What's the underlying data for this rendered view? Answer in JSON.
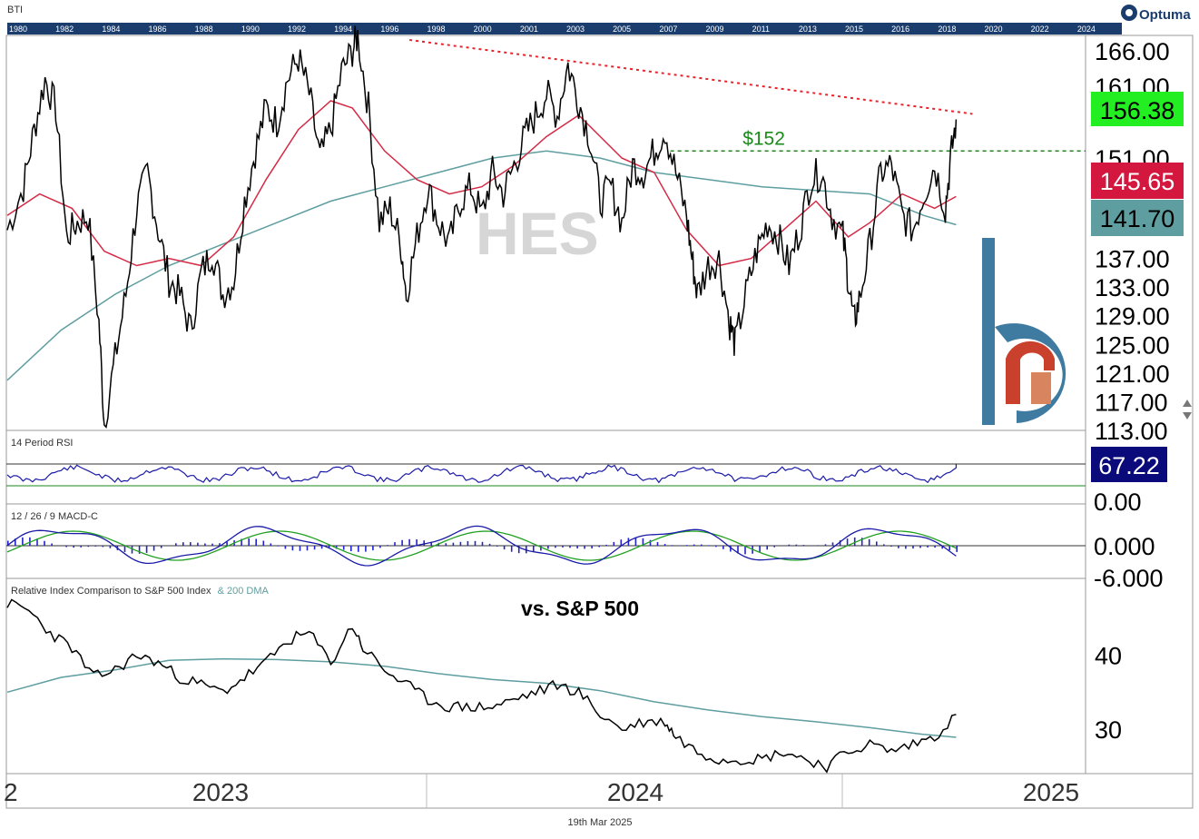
{
  "app": {
    "brand": "Optuma",
    "symbol_code": "BTI",
    "date": "19th Mar 2025"
  },
  "timeline_years": [
    "1980",
    "1982",
    "1984",
    "1986",
    "1988",
    "1990",
    "1992",
    "1994",
    "1996",
    "1998",
    "2000",
    "2001",
    "2003",
    "2005",
    "2007",
    "2009",
    "2011",
    "2013",
    "2015",
    "2016",
    "2018",
    "2020",
    "2022",
    "2024"
  ],
  "colors": {
    "price": "#000000",
    "ma_red": "#d42a45",
    "ma_teal": "#5f9ea0",
    "trend_red": "#e8242c",
    "support_green": "#1b8a1b",
    "rsi_line": "#1a1aa8",
    "macd_line": "#1a1aa8",
    "signal_line": "#22a022",
    "hist": "#2222cc",
    "tag_green": "#22ee22",
    "tag_red": "#d4173f",
    "tag_teal": "#5f9ea0",
    "tag_navy": "#0a0a7a",
    "timeline_bg": "#1a3d6e",
    "logo_blue": "#3f7aa0",
    "logo_red": "#c9402d",
    "logo_orange": "#d8845e"
  },
  "chart_data": [
    {
      "type": "line",
      "panel": "price",
      "watermark": "HES",
      "annotation": "$152",
      "yticks": [
        "166.00",
        "161.00",
        "151.00",
        "137.00",
        "133.00",
        "129.00",
        "125.00",
        "121.00",
        "117.00",
        "113.00"
      ],
      "ylim": [
        113,
        168
      ],
      "last_values": {
        "price": "156.38",
        "ma_red": "145.65",
        "ma_teal": "141.70"
      },
      "support_level": 152,
      "trendline": {
        "from": [
          0.373,
          167.5
        ],
        "to": [
          0.88,
          157.3
        ]
      },
      "price_points": [
        [
          0.0,
          141
        ],
        [
          0.015,
          147
        ],
        [
          0.025,
          155
        ],
        [
          0.035,
          162
        ],
        [
          0.045,
          158
        ],
        [
          0.055,
          140
        ],
        [
          0.065,
          142
        ],
        [
          0.075,
          143
        ],
        [
          0.085,
          128
        ],
        [
          0.09,
          114
        ],
        [
          0.1,
          123
        ],
        [
          0.11,
          132
        ],
        [
          0.12,
          144
        ],
        [
          0.13,
          149
        ],
        [
          0.14,
          141
        ],
        [
          0.15,
          134
        ],
        [
          0.16,
          132
        ],
        [
          0.17,
          127
        ],
        [
          0.18,
          135
        ],
        [
          0.19,
          138
        ],
        [
          0.2,
          132
        ],
        [
          0.21,
          134
        ],
        [
          0.22,
          145
        ],
        [
          0.23,
          152
        ],
        [
          0.24,
          158
        ],
        [
          0.25,
          156
        ],
        [
          0.26,
          162
        ],
        [
          0.27,
          165
        ],
        [
          0.28,
          160
        ],
        [
          0.29,
          151
        ],
        [
          0.3,
          155
        ],
        [
          0.31,
          163
        ],
        [
          0.32,
          166
        ],
        [
          0.325,
          168
        ],
        [
          0.335,
          158
        ],
        [
          0.345,
          142
        ],
        [
          0.355,
          144
        ],
        [
          0.365,
          139
        ],
        [
          0.37,
          132
        ],
        [
          0.38,
          140
        ],
        [
          0.39,
          147
        ],
        [
          0.4,
          142
        ],
        [
          0.41,
          139
        ],
        [
          0.42,
          145
        ],
        [
          0.43,
          147
        ],
        [
          0.44,
          143
        ],
        [
          0.45,
          149
        ],
        [
          0.46,
          146
        ],
        [
          0.47,
          150
        ],
        [
          0.48,
          154
        ],
        [
          0.49,
          157
        ],
        [
          0.5,
          160
        ],
        [
          0.51,
          157
        ],
        [
          0.52,
          164
        ],
        [
          0.53,
          159
        ],
        [
          0.54,
          154
        ],
        [
          0.55,
          145
        ],
        [
          0.56,
          147
        ],
        [
          0.57,
          142
        ],
        [
          0.58,
          150
        ],
        [
          0.59,
          149
        ],
        [
          0.6,
          152
        ],
        [
          0.61,
          155
        ],
        [
          0.62,
          149
        ],
        [
          0.63,
          143
        ],
        [
          0.635,
          137
        ],
        [
          0.64,
          132
        ],
        [
          0.65,
          136
        ],
        [
          0.66,
          137
        ],
        [
          0.67,
          128
        ],
        [
          0.675,
          125
        ],
        [
          0.685,
          132
        ],
        [
          0.695,
          138
        ],
        [
          0.705,
          142
        ],
        [
          0.715,
          140
        ],
        [
          0.725,
          136
        ],
        [
          0.735,
          141
        ],
        [
          0.745,
          148
        ],
        [
          0.755,
          149
        ],
        [
          0.765,
          143
        ],
        [
          0.775,
          140
        ],
        [
          0.78,
          134
        ],
        [
          0.785,
          128
        ],
        [
          0.79,
          131
        ],
        [
          0.8,
          139
        ],
        [
          0.81,
          149
        ],
        [
          0.82,
          150
        ],
        [
          0.83,
          143
        ],
        [
          0.84,
          141
        ],
        [
          0.85,
          146
        ],
        [
          0.86,
          150
        ],
        [
          0.87,
          144
        ],
        [
          0.875,
          151
        ],
        [
          0.88,
          156.4
        ]
      ],
      "ma_red_points": [
        [
          0.0,
          143
        ],
        [
          0.03,
          146
        ],
        [
          0.06,
          144
        ],
        [
          0.09,
          138
        ],
        [
          0.12,
          136
        ],
        [
          0.15,
          137
        ],
        [
          0.18,
          136
        ],
        [
          0.21,
          140
        ],
        [
          0.24,
          148
        ],
        [
          0.27,
          155
        ],
        [
          0.3,
          159
        ],
        [
          0.32,
          158
        ],
        [
          0.35,
          152
        ],
        [
          0.38,
          148
        ],
        [
          0.41,
          146
        ],
        [
          0.44,
          147
        ],
        [
          0.47,
          150
        ],
        [
          0.5,
          154
        ],
        [
          0.53,
          157
        ],
        [
          0.55,
          154
        ],
        [
          0.57,
          151
        ],
        [
          0.6,
          149
        ],
        [
          0.63,
          141
        ],
        [
          0.66,
          136
        ],
        [
          0.69,
          137
        ],
        [
          0.72,
          141
        ],
        [
          0.75,
          145
        ],
        [
          0.78,
          140
        ],
        [
          0.8,
          142
        ],
        [
          0.83,
          146
        ],
        [
          0.86,
          144
        ],
        [
          0.88,
          145.65
        ]
      ],
      "ma_teal_points": [
        [
          0.0,
          120
        ],
        [
          0.05,
          127
        ],
        [
          0.1,
          132
        ],
        [
          0.15,
          136
        ],
        [
          0.2,
          139
        ],
        [
          0.25,
          142
        ],
        [
          0.3,
          145
        ],
        [
          0.35,
          147
        ],
        [
          0.4,
          149
        ],
        [
          0.45,
          151
        ],
        [
          0.5,
          152
        ],
        [
          0.55,
          151
        ],
        [
          0.6,
          149
        ],
        [
          0.65,
          148
        ],
        [
          0.7,
          147
        ],
        [
          0.75,
          146.5
        ],
        [
          0.8,
          146
        ],
        [
          0.85,
          143
        ],
        [
          0.88,
          141.7
        ]
      ]
    },
    {
      "type": "line",
      "panel": "rsi",
      "title": "14 Period RSI",
      "last_value": "67.22",
      "ytick_bottom": "0.00"
    },
    {
      "type": "bar",
      "panel": "macd",
      "title": "12 / 26 / 9 MACD-C",
      "yticks": [
        "0.000",
        "-6.000"
      ]
    },
    {
      "type": "line",
      "panel": "relative",
      "title": "Relative Index Comparison to S&P 500 Index",
      "series_extra": "& 200 DMA",
      "annotation": "vs. S&P 500",
      "yticks": [
        "40",
        "30"
      ],
      "ylim": [
        24,
        50
      ],
      "rel_points": [
        [
          0.0,
          47
        ],
        [
          0.02,
          46
        ],
        [
          0.04,
          43
        ],
        [
          0.06,
          41
        ],
        [
          0.08,
          37
        ],
        [
          0.1,
          38
        ],
        [
          0.12,
          40
        ],
        [
          0.14,
          39
        ],
        [
          0.16,
          37
        ],
        [
          0.18,
          36
        ],
        [
          0.2,
          35
        ],
        [
          0.22,
          37
        ],
        [
          0.24,
          39
        ],
        [
          0.26,
          42
        ],
        [
          0.28,
          43
        ],
        [
          0.3,
          39
        ],
        [
          0.32,
          44
        ],
        [
          0.33,
          41
        ],
        [
          0.35,
          38
        ],
        [
          0.37,
          36
        ],
        [
          0.39,
          34
        ],
        [
          0.41,
          33
        ],
        [
          0.43,
          33
        ],
        [
          0.45,
          33
        ],
        [
          0.47,
          34
        ],
        [
          0.49,
          35
        ],
        [
          0.51,
          36
        ],
        [
          0.53,
          35
        ],
        [
          0.55,
          32
        ],
        [
          0.57,
          30
        ],
        [
          0.59,
          31
        ],
        [
          0.61,
          31
        ],
        [
          0.62,
          29
        ],
        [
          0.64,
          27
        ],
        [
          0.66,
          26
        ],
        [
          0.68,
          26
        ],
        [
          0.7,
          26
        ],
        [
          0.72,
          27
        ],
        [
          0.74,
          26
        ],
        [
          0.76,
          25
        ],
        [
          0.78,
          27
        ],
        [
          0.8,
          28
        ],
        [
          0.82,
          27
        ],
        [
          0.84,
          28
        ],
        [
          0.86,
          29
        ],
        [
          0.88,
          32
        ]
      ],
      "dma_points": [
        [
          0.0,
          35
        ],
        [
          0.05,
          37
        ],
        [
          0.1,
          38
        ],
        [
          0.15,
          39.3
        ],
        [
          0.2,
          39.5
        ],
        [
          0.25,
          39.4
        ],
        [
          0.3,
          39.1
        ],
        [
          0.35,
          38.5
        ],
        [
          0.4,
          37.5
        ],
        [
          0.45,
          36.7
        ],
        [
          0.5,
          36.2
        ],
        [
          0.55,
          35.2
        ],
        [
          0.6,
          33.7
        ],
        [
          0.65,
          32.6
        ],
        [
          0.7,
          31.7
        ],
        [
          0.75,
          31
        ],
        [
          0.8,
          30.2
        ],
        [
          0.85,
          29.3
        ],
        [
          0.88,
          28.9
        ]
      ]
    }
  ],
  "xaxis": {
    "labels": [
      "2023",
      "2024",
      "2025"
    ],
    "start_partial": "2"
  }
}
